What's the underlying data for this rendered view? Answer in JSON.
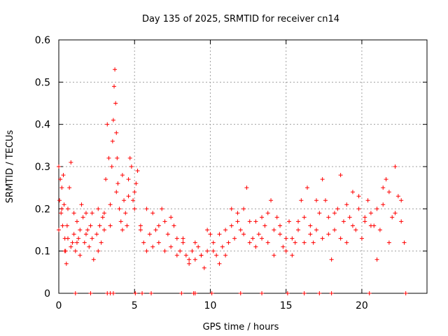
{
  "chart_data": {
    "type": "scatter",
    "title": "Day 135 of 2025, SRMTID for receiver cn14",
    "xlabel": "GPS time / hours",
    "ylabel": "SRMTID / TECUs",
    "xlim": [
      0,
      24.3
    ],
    "ylim": [
      0,
      0.6
    ],
    "xticks": [
      0,
      5,
      10,
      15,
      20
    ],
    "xtick_labels": [
      "0",
      "5",
      "10",
      "15",
      "20"
    ],
    "yticks": [
      0,
      0.1,
      0.2,
      0.3,
      0.4,
      0.5,
      0.6
    ],
    "ytick_labels": [
      "0",
      "0.1",
      "0.2",
      "0.3",
      "0.4",
      "0.5",
      "0.6"
    ],
    "grid": true,
    "marker": "+",
    "color": "#ff0000",
    "series": [
      {
        "name": "SRMTID",
        "x": [
          0.0,
          0.05,
          0.1,
          0.15,
          0.2,
          0.25,
          0.3,
          0.35,
          0.4,
          0.45,
          0.5,
          0.55,
          0.6,
          0.7,
          0.8,
          0.9,
          1.0,
          1.1,
          1.2,
          1.3,
          1.4,
          1.5,
          1.6,
          1.7,
          1.8,
          1.9,
          2.0,
          2.1,
          2.2,
          2.3,
          2.5,
          2.6,
          2.7,
          2.8,
          2.9,
          3.0,
          3.1,
          3.2,
          3.3,
          3.4,
          3.5,
          3.55,
          3.6,
          3.65,
          3.7,
          3.75,
          3.8,
          3.85,
          3.9,
          4.0,
          4.1,
          4.2,
          4.3,
          4.4,
          4.5,
          4.6,
          4.7,
          4.8,
          4.9,
          5.0,
          5.1,
          5.2,
          5.4,
          5.6,
          5.8,
          6.0,
          6.2,
          6.4,
          6.6,
          6.8,
          7.0,
          7.2,
          7.4,
          7.6,
          7.8,
          8.0,
          8.2,
          8.4,
          8.6,
          8.8,
          9.0,
          9.2,
          9.4,
          9.6,
          9.8,
          10.0,
          10.2,
          10.4,
          10.6,
          10.8,
          11.0,
          11.2,
          11.4,
          11.6,
          11.8,
          12.0,
          12.2,
          12.4,
          12.6,
          12.8,
          13.0,
          13.2,
          13.4,
          13.6,
          13.8,
          14.0,
          14.2,
          14.4,
          14.6,
          14.8,
          15.0,
          15.2,
          15.4,
          15.6,
          15.8,
          16.0,
          16.2,
          16.4,
          16.6,
          16.8,
          17.0,
          17.2,
          17.4,
          17.6,
          17.8,
          18.0,
          18.2,
          18.4,
          18.6,
          18.8,
          19.0,
          19.2,
          19.4,
          19.6,
          19.8,
          20.0,
          20.2,
          20.4,
          20.6,
          20.8,
          21.0,
          21.2,
          21.4,
          21.6,
          21.8,
          22.0,
          22.2,
          22.4,
          22.6,
          22.8
        ],
        "y": [
          0.3,
          0.22,
          0.27,
          0.19,
          0.25,
          0.16,
          0.28,
          0.21,
          0.13,
          0.1,
          0.07,
          0.16,
          0.2,
          0.25,
          0.31,
          0.12,
          0.14,
          0.1,
          0.17,
          0.13,
          0.15,
          0.21,
          0.18,
          0.12,
          0.19,
          0.15,
          0.11,
          0.16,
          0.13,
          0.08,
          0.14,
          0.2,
          0.16,
          0.12,
          0.18,
          0.19,
          0.27,
          0.4,
          0.32,
          0.21,
          0.3,
          0.36,
          0.41,
          0.49,
          0.53,
          0.45,
          0.38,
          0.32,
          0.26,
          0.2,
          0.17,
          0.15,
          0.22,
          0.19,
          0.16,
          0.27,
          0.32,
          0.3,
          0.22,
          0.2,
          0.26,
          0.29,
          0.16,
          0.12,
          0.1,
          0.14,
          0.19,
          0.15,
          0.12,
          0.2,
          0.17,
          0.14,
          0.11,
          0.16,
          0.13,
          0.1,
          0.12,
          0.09,
          0.07,
          0.1,
          0.08,
          0.11,
          0.09,
          0.06,
          0.1,
          0.14,
          0.12,
          0.09,
          0.07,
          0.11,
          0.15,
          0.12,
          0.16,
          0.13,
          0.19,
          0.15,
          0.2,
          0.25,
          0.17,
          0.13,
          0.11,
          0.14,
          0.18,
          0.16,
          0.12,
          0.22,
          0.15,
          0.18,
          0.14,
          0.11,
          0.13,
          0.17,
          0.09,
          0.12,
          0.15,
          0.22,
          0.18,
          0.25,
          0.16,
          0.12,
          0.15,
          0.19,
          0.27,
          0.22,
          0.14,
          0.08,
          0.15,
          0.2,
          0.28,
          0.17,
          0.12,
          0.18,
          0.24,
          0.15,
          0.2,
          0.13,
          0.17,
          0.22,
          0.19,
          0.16,
          0.08,
          0.15,
          0.21,
          0.27,
          0.24,
          0.18,
          0.3,
          0.23,
          0.17,
          0.12
        ],
        "additional_points": {
          "x": [
            0.0,
            0.2,
            0.4,
            0.6,
            0.8,
            1.0,
            1.2,
            1.4,
            1.8,
            2.2,
            2.6,
            3.0,
            3.4,
            3.8,
            4.2,
            4.6,
            5.0,
            5.4,
            5.8,
            6.2,
            6.6,
            7.0,
            7.4,
            7.8,
            8.2,
            8.6,
            9.0,
            9.4,
            9.8,
            10.2,
            10.6,
            11.0,
            11.4,
            11.8,
            12.2,
            12.6,
            13.0,
            13.4,
            13.8,
            14.2,
            14.6,
            15.0,
            15.4,
            15.8,
            16.2,
            16.6,
            17.0,
            17.4,
            17.8,
            18.2,
            18.6,
            19.0,
            19.4,
            19.8,
            20.2,
            20.6,
            21.0,
            21.4,
            21.8,
            22.2,
            22.6
          ],
          "y": [
            0.15,
            0.2,
            0.1,
            0.13,
            0.11,
            0.19,
            0.12,
            0.09,
            0.14,
            0.19,
            0.1,
            0.15,
            0.16,
            0.24,
            0.28,
            0.23,
            0.24,
            0.15,
            0.2,
            0.11,
            0.16,
            0.1,
            0.18,
            0.09,
            0.13,
            0.08,
            0.12,
            0.09,
            0.15,
            0.1,
            0.14,
            0.09,
            0.2,
            0.17,
            0.14,
            0.12,
            0.17,
            0.13,
            0.19,
            0.09,
            0.16,
            0.1,
            0.13,
            0.17,
            0.12,
            0.14,
            0.22,
            0.13,
            0.18,
            0.19,
            0.13,
            0.21,
            0.16,
            0.23,
            0.18,
            0.16,
            0.2,
            0.25,
            0.12,
            0.19,
            0.22
          ]
        },
        "zero_points": {
          "x": [
            1.1,
            2.1,
            3.2,
            3.4,
            3.6,
            5.05,
            5.5,
            6.1,
            8.1,
            8.9,
            9.0,
            10.1,
            12.0,
            13.4,
            15.1,
            16.2,
            17.2,
            18.0,
            20.5,
            22.9
          ],
          "y": [
            0,
            0,
            0,
            0,
            0,
            0,
            0,
            0,
            0,
            0,
            0,
            0,
            0,
            0,
            0,
            0,
            0,
            0,
            0,
            0
          ]
        }
      }
    ]
  }
}
